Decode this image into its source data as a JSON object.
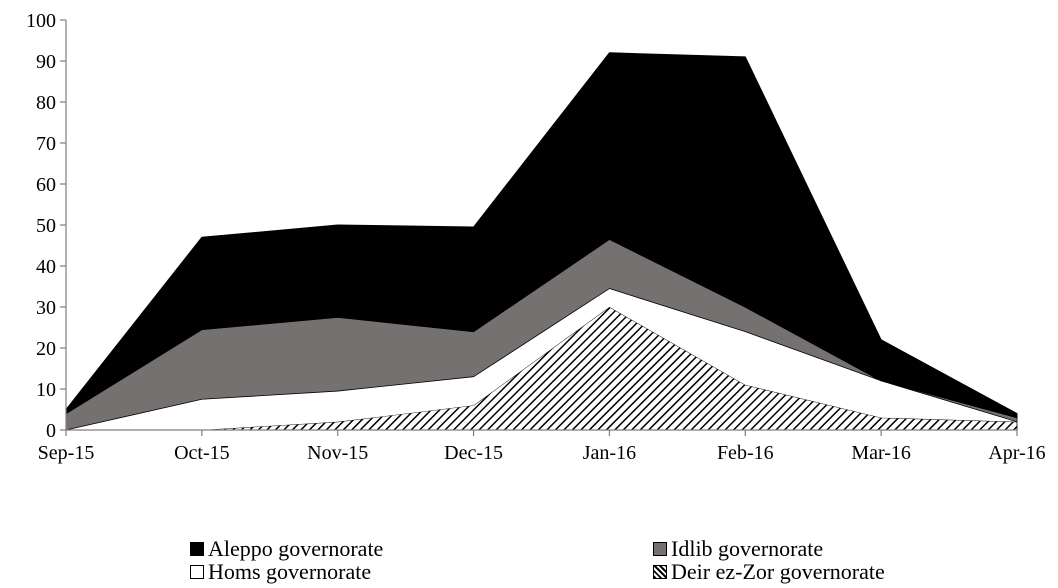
{
  "chart_data": {
    "type": "area",
    "stacked": true,
    "categories": [
      "Sep-15",
      "Oct-15",
      "Nov-15",
      "Dec-15",
      "Jan-16",
      "Feb-16",
      "Mar-16",
      "Apr-16"
    ],
    "ylim": [
      0,
      100
    ],
    "yticks": [
      0,
      10,
      20,
      30,
      40,
      50,
      60,
      70,
      80,
      90,
      100
    ],
    "grid": false,
    "legend_position": "bottom",
    "series": [
      {
        "name": "Deir ez-Zor governorate",
        "values": [
          0,
          0,
          2,
          6,
          30,
          11,
          3,
          2
        ],
        "fill": "hatch"
      },
      {
        "name": "Homs governorate",
        "values": [
          0,
          7.5,
          7.5,
          7,
          4.5,
          13,
          9,
          0
        ],
        "fill": "#ffffff"
      },
      {
        "name": "Idlib governorate",
        "values": [
          4,
          17,
          18,
          11,
          12,
          6,
          0,
          1
        ],
        "fill": "#767171"
      },
      {
        "name": "Aleppo governorate",
        "values": [
          1,
          22.5,
          22.5,
          25.5,
          45.5,
          61,
          10,
          1
        ],
        "fill": "#000000"
      }
    ]
  }
}
